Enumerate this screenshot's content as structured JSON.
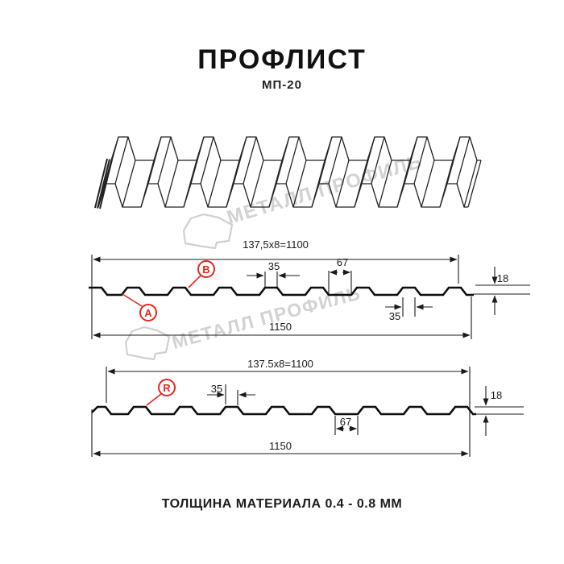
{
  "header": {
    "title": "ПРОФЛИСТ",
    "subtitle": "МП-20"
  },
  "watermark": {
    "text": "МЕТАЛЛ ПРОФИЛЬ"
  },
  "profile_top": {
    "label_a": "A",
    "label_b": "B",
    "dims": {
      "pitch": "137,5x8=1100",
      "rib_top": "35",
      "valley": "67",
      "height": "18",
      "rib_bottom": "35",
      "total": "1150"
    }
  },
  "profile_bottom": {
    "label_r": "R",
    "dims": {
      "pitch": "137.5x8=1100",
      "rib_top": "35",
      "valley": "67",
      "height": "18",
      "total": "1150"
    }
  },
  "footer": {
    "text": "ТОЛЩИНА МАТЕРИАЛА 0.4 - 0.8 ММ"
  },
  "colors": {
    "accent_red": "#e7261d",
    "line_dark": "#1a1a1a",
    "watermark_gray": "#d2d2d2"
  }
}
